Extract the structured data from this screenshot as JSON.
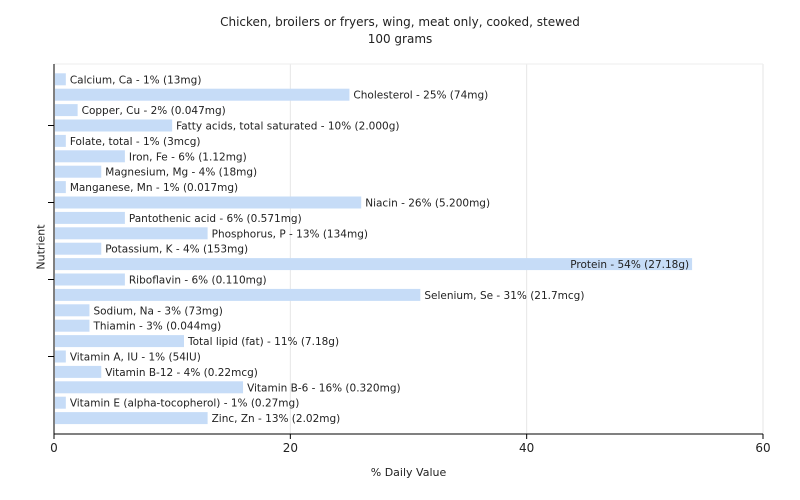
{
  "chart_data": {
    "type": "bar",
    "orientation": "horizontal",
    "title": "Chicken, broilers or fryers, wing, meat only, cooked, stewed",
    "subtitle": "100 grams",
    "xlabel": "% Daily Value",
    "ylabel": "Nutrient",
    "xlim": [
      0,
      60
    ],
    "xticks": [
      0,
      20,
      40,
      60
    ],
    "grid": true,
    "bar_color": "#c6dcf7",
    "categories": [
      "Calcium, Ca",
      "Cholesterol",
      "Copper, Cu",
      "Fatty acids, total saturated",
      "Folate, total",
      "Iron, Fe",
      "Magnesium, Mg",
      "Manganese, Mn",
      "Niacin",
      "Pantothenic acid",
      "Phosphorus, P",
      "Potassium, K",
      "Protein",
      "Riboflavin",
      "Selenium, Se",
      "Sodium, Na",
      "Thiamin",
      "Total lipid (fat)",
      "Vitamin A, IU",
      "Vitamin B-12",
      "Vitamin B-6",
      "Vitamin E (alpha-tocopherol)",
      "Zinc, Zn"
    ],
    "values": [
      1,
      25,
      2,
      10,
      1,
      6,
      4,
      1,
      26,
      6,
      13,
      4,
      54,
      6,
      31,
      3,
      3,
      11,
      1,
      4,
      16,
      1,
      13
    ],
    "labels": [
      "Calcium, Ca - 1% (13mg)",
      "Cholesterol - 25% (74mg)",
      "Copper, Cu - 2% (0.047mg)",
      "Fatty acids, total saturated - 10% (2.000g)",
      "Folate, total - 1% (3mcg)",
      "Iron, Fe - 6% (1.12mg)",
      "Magnesium, Mg - 4% (18mg)",
      "Manganese, Mn - 1% (0.017mg)",
      "Niacin - 26% (5.200mg)",
      "Pantothenic acid - 6% (0.571mg)",
      "Phosphorus, P - 13% (134mg)",
      "Potassium, K - 4% (153mg)",
      "Protein - 54% (27.18g)",
      "Riboflavin - 6% (0.110mg)",
      "Selenium, Se - 31% (21.7mcg)",
      "Sodium, Na - 3% (73mg)",
      "Thiamin - 3% (0.044mg)",
      "Total lipid (fat) - 11% (7.18g)",
      "Vitamin A, IU - 1% (54IU)",
      "Vitamin B-12 - 4% (0.22mcg)",
      "Vitamin B-6 - 16% (0.320mg)",
      "Vitamin E (alpha-tocopherol) - 1% (0.27mg)",
      "Zinc, Zn - 13% (2.02mg)"
    ]
  }
}
